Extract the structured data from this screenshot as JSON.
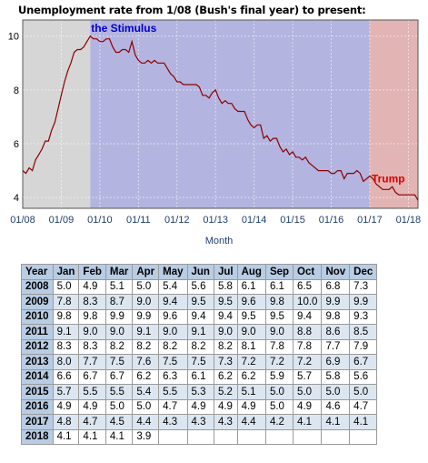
{
  "chart_data": {
    "type": "line",
    "title": "Unemployment rate from 1/08 (Bush's final year) to present:",
    "xlabel": "Month",
    "ylabel": "",
    "ylim": [
      3.6,
      10.6
    ],
    "xlim": [
      "2008-01",
      "2018-04"
    ],
    "y_ticks": [
      "4",
      "6",
      "8",
      "10"
    ],
    "x_ticks": [
      "01/08",
      "01/09",
      "01/10",
      "01/11",
      "01/12",
      "01/13",
      "01/14",
      "01/15",
      "01/16",
      "01/17",
      "01/18"
    ],
    "grid": true,
    "line_color": "#8b0000",
    "regions": [
      {
        "label": "",
        "start": "2008-01",
        "end": "2009-10",
        "color": "#d6d6d6"
      },
      {
        "label": "the Stimulus",
        "start": "2009-10",
        "end": "2017-01",
        "color": "#b4b4e0",
        "label_color": "#0000cc"
      },
      {
        "label": "Trump",
        "start": "2017-01",
        "end": "2018-04",
        "color": "#e2b4b4",
        "label_color": "#dd0000"
      }
    ],
    "series_start": "2008-01",
    "values": [
      5.0,
      4.9,
      5.1,
      5.0,
      5.4,
      5.6,
      5.8,
      6.1,
      6.1,
      6.5,
      6.8,
      7.3,
      7.8,
      8.3,
      8.7,
      9.0,
      9.4,
      9.5,
      9.5,
      9.6,
      9.8,
      10.0,
      9.9,
      9.9,
      9.8,
      9.8,
      9.9,
      9.9,
      9.6,
      9.4,
      9.4,
      9.5,
      9.5,
      9.4,
      9.8,
      9.3,
      9.1,
      9.0,
      9.0,
      9.1,
      9.0,
      9.1,
      9.0,
      9.0,
      9.0,
      8.8,
      8.6,
      8.5,
      8.3,
      8.3,
      8.2,
      8.2,
      8.2,
      8.2,
      8.2,
      8.1,
      7.8,
      7.8,
      7.7,
      7.9,
      8.0,
      7.7,
      7.5,
      7.6,
      7.5,
      7.5,
      7.3,
      7.2,
      7.2,
      7.2,
      6.9,
      6.7,
      6.6,
      6.7,
      6.7,
      6.2,
      6.3,
      6.1,
      6.2,
      6.2,
      5.9,
      5.7,
      5.8,
      5.6,
      5.7,
      5.5,
      5.5,
      5.4,
      5.5,
      5.3,
      5.2,
      5.1,
      5.0,
      5.0,
      5.0,
      5.0,
      4.9,
      4.9,
      5.0,
      5.0,
      4.7,
      4.9,
      4.9,
      4.9,
      5.0,
      4.9,
      4.6,
      4.7,
      4.8,
      4.7,
      4.5,
      4.4,
      4.3,
      4.3,
      4.3,
      4.4,
      4.2,
      4.1,
      4.1,
      4.1,
      4.1,
      4.1,
      4.1,
      3.9
    ]
  },
  "table": {
    "headers": [
      "Year",
      "Jan",
      "Feb",
      "Mar",
      "Apr",
      "May",
      "Jun",
      "Jul",
      "Aug",
      "Sep",
      "Oct",
      "Nov",
      "Dec"
    ],
    "rows": [
      [
        "2008",
        "5.0",
        "4.9",
        "5.1",
        "5.0",
        "5.4",
        "5.6",
        "5.8",
        "6.1",
        "6.1",
        "6.5",
        "6.8",
        "7.3"
      ],
      [
        "2009",
        "7.8",
        "8.3",
        "8.7",
        "9.0",
        "9.4",
        "9.5",
        "9.5",
        "9.6",
        "9.8",
        "10.0",
        "9.9",
        "9.9"
      ],
      [
        "2010",
        "9.8",
        "9.8",
        "9.9",
        "9.9",
        "9.6",
        "9.4",
        "9.4",
        "9.5",
        "9.5",
        "9.4",
        "9.8",
        "9.3"
      ],
      [
        "2011",
        "9.1",
        "9.0",
        "9.0",
        "9.1",
        "9.0",
        "9.1",
        "9.0",
        "9.0",
        "9.0",
        "8.8",
        "8.6",
        "8.5"
      ],
      [
        "2012",
        "8.3",
        "8.3",
        "8.2",
        "8.2",
        "8.2",
        "8.2",
        "8.2",
        "8.1",
        "7.8",
        "7.8",
        "7.7",
        "7.9"
      ],
      [
        "2013",
        "8.0",
        "7.7",
        "7.5",
        "7.6",
        "7.5",
        "7.5",
        "7.3",
        "7.2",
        "7.2",
        "7.2",
        "6.9",
        "6.7"
      ],
      [
        "2014",
        "6.6",
        "6.7",
        "6.7",
        "6.2",
        "6.3",
        "6.1",
        "6.2",
        "6.2",
        "5.9",
        "5.7",
        "5.8",
        "5.6"
      ],
      [
        "2015",
        "5.7",
        "5.5",
        "5.5",
        "5.4",
        "5.5",
        "5.3",
        "5.2",
        "5.1",
        "5.0",
        "5.0",
        "5.0",
        "5.0"
      ],
      [
        "2016",
        "4.9",
        "4.9",
        "5.0",
        "5.0",
        "4.7",
        "4.9",
        "4.9",
        "4.9",
        "5.0",
        "4.9",
        "4.6",
        "4.7"
      ],
      [
        "2017",
        "4.8",
        "4.7",
        "4.5",
        "4.4",
        "4.3",
        "4.3",
        "4.3",
        "4.4",
        "4.2",
        "4.1",
        "4.1",
        "4.1"
      ],
      [
        "2018",
        "4.1",
        "4.1",
        "4.1",
        "3.9",
        "",
        "",
        "",
        "",
        "",
        "",
        "",
        ""
      ]
    ]
  }
}
